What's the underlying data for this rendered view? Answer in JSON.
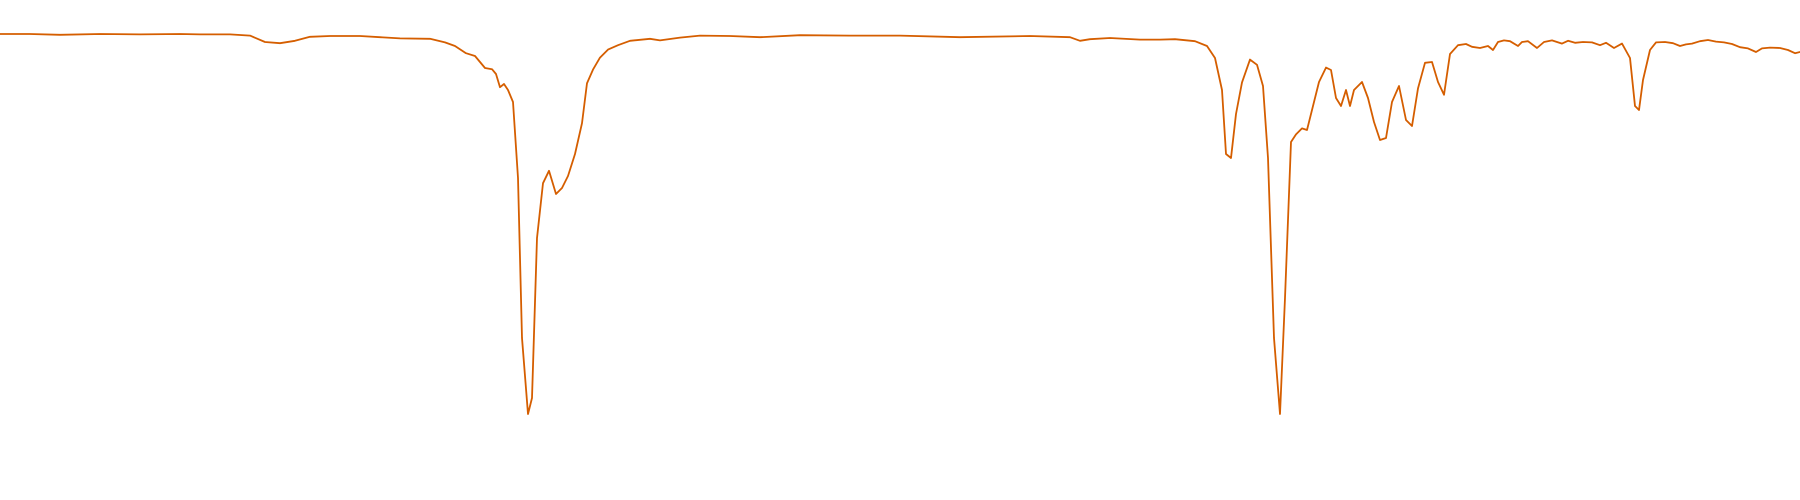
{
  "chart_data": {
    "type": "line",
    "title": "",
    "xlabel": "",
    "ylabel": "",
    "grid": false,
    "legend": "none",
    "xlim": [
      0,
      1800
    ],
    "ylim": [
      0.0,
      1.0
    ],
    "series": [
      {
        "color": "#d55e00",
        "points": [
          [
            0,
            0.96
          ],
          [
            30,
            0.96
          ],
          [
            60,
            0.958
          ],
          [
            100,
            0.96
          ],
          [
            140,
            0.959
          ],
          [
            180,
            0.96
          ],
          [
            200,
            0.959
          ],
          [
            230,
            0.959
          ],
          [
            250,
            0.956
          ],
          [
            265,
            0.94
          ],
          [
            280,
            0.937
          ],
          [
            295,
            0.943
          ],
          [
            310,
            0.953
          ],
          [
            330,
            0.955
          ],
          [
            360,
            0.955
          ],
          [
            400,
            0.949
          ],
          [
            430,
            0.948
          ],
          [
            445,
            0.939
          ],
          [
            455,
            0.93
          ],
          [
            466,
            0.912
          ],
          [
            475,
            0.905
          ],
          [
            485,
            0.875
          ],
          [
            492,
            0.872
          ],
          [
            496,
            0.86
          ],
          [
            500,
            0.827
          ],
          [
            504,
            0.835
          ],
          [
            508,
            0.82
          ],
          [
            513,
            0.79
          ],
          [
            518,
            0.6
          ],
          [
            522,
            0.2
          ],
          [
            528,
            0.01
          ],
          [
            532,
            0.05
          ],
          [
            537,
            0.45
          ],
          [
            543,
            0.587
          ],
          [
            549,
            0.618
          ],
          [
            556,
            0.56
          ],
          [
            562,
            0.575
          ],
          [
            568,
            0.605
          ],
          [
            575,
            0.66
          ],
          [
            582,
            0.737
          ],
          [
            587,
            0.837
          ],
          [
            593,
            0.871
          ],
          [
            600,
            0.901
          ],
          [
            608,
            0.921
          ],
          [
            618,
            0.932
          ],
          [
            630,
            0.943
          ],
          [
            650,
            0.948
          ],
          [
            660,
            0.944
          ],
          [
            680,
            0.951
          ],
          [
            700,
            0.956
          ],
          [
            730,
            0.955
          ],
          [
            760,
            0.952
          ],
          [
            800,
            0.957
          ],
          [
            850,
            0.956
          ],
          [
            900,
            0.956
          ],
          [
            960,
            0.952
          ],
          [
            1030,
            0.955
          ],
          [
            1070,
            0.952
          ],
          [
            1080,
            0.943
          ],
          [
            1090,
            0.947
          ],
          [
            1110,
            0.95
          ],
          [
            1140,
            0.946
          ],
          [
            1160,
            0.946
          ],
          [
            1175,
            0.947
          ],
          [
            1195,
            0.942
          ],
          [
            1207,
            0.93
          ],
          [
            1215,
            0.9
          ],
          [
            1222,
            0.82
          ],
          [
            1226,
            0.66
          ],
          [
            1231,
            0.65
          ],
          [
            1236,
            0.76
          ],
          [
            1242,
            0.839
          ],
          [
            1250,
            0.896
          ],
          [
            1257,
            0.883
          ],
          [
            1263,
            0.83
          ],
          [
            1268,
            0.65
          ],
          [
            1274,
            0.2
          ],
          [
            1280,
            0.01
          ],
          [
            1285,
            0.3
          ],
          [
            1291,
            0.69
          ],
          [
            1296,
            0.709
          ],
          [
            1302,
            0.724
          ],
          [
            1307,
            0.72
          ],
          [
            1314,
            0.79
          ],
          [
            1319,
            0.84
          ],
          [
            1326,
            0.876
          ],
          [
            1331,
            0.87
          ],
          [
            1336,
            0.8
          ],
          [
            1341,
            0.78
          ],
          [
            1346,
            0.82
          ],
          [
            1350,
            0.78
          ],
          [
            1354,
            0.82
          ],
          [
            1362,
            0.84
          ],
          [
            1368,
            0.8
          ],
          [
            1374,
            0.74
          ],
          [
            1380,
            0.695
          ],
          [
            1386,
            0.7
          ],
          [
            1392,
            0.79
          ],
          [
            1399,
            0.83
          ],
          [
            1406,
            0.745
          ],
          [
            1412,
            0.73
          ],
          [
            1418,
            0.824
          ],
          [
            1425,
            0.888
          ],
          [
            1432,
            0.89
          ],
          [
            1438,
            0.84
          ],
          [
            1444,
            0.808
          ],
          [
            1450,
            0.91
          ],
          [
            1458,
            0.932
          ],
          [
            1466,
            0.935
          ],
          [
            1472,
            0.928
          ],
          [
            1480,
            0.925
          ],
          [
            1488,
            0.93
          ],
          [
            1493,
            0.92
          ],
          [
            1498,
            0.94
          ],
          [
            1504,
            0.944
          ],
          [
            1510,
            0.942
          ],
          [
            1518,
            0.93
          ],
          [
            1522,
            0.94
          ],
          [
            1528,
            0.942
          ],
          [
            1537,
            0.925
          ],
          [
            1544,
            0.94
          ],
          [
            1552,
            0.944
          ],
          [
            1562,
            0.936
          ],
          [
            1568,
            0.943
          ],
          [
            1575,
            0.938
          ],
          [
            1583,
            0.94
          ],
          [
            1592,
            0.939
          ],
          [
            1600,
            0.932
          ],
          [
            1606,
            0.938
          ],
          [
            1614,
            0.925
          ],
          [
            1622,
            0.936
          ],
          [
            1630,
            0.9
          ],
          [
            1635,
            0.78
          ],
          [
            1639,
            0.77
          ],
          [
            1643,
            0.845
          ],
          [
            1650,
            0.92
          ],
          [
            1656,
            0.939
          ],
          [
            1665,
            0.94
          ],
          [
            1673,
            0.937
          ],
          [
            1680,
            0.93
          ],
          [
            1686,
            0.934
          ],
          [
            1692,
            0.936
          ],
          [
            1700,
            0.942
          ],
          [
            1708,
            0.945
          ],
          [
            1716,
            0.941
          ],
          [
            1724,
            0.939
          ],
          [
            1732,
            0.935
          ],
          [
            1740,
            0.927
          ],
          [
            1748,
            0.924
          ],
          [
            1756,
            0.915
          ],
          [
            1762,
            0.924
          ],
          [
            1770,
            0.926
          ],
          [
            1780,
            0.925
          ],
          [
            1788,
            0.92
          ],
          [
            1795,
            0.912
          ],
          [
            1800,
            0.915
          ]
        ]
      }
    ]
  }
}
